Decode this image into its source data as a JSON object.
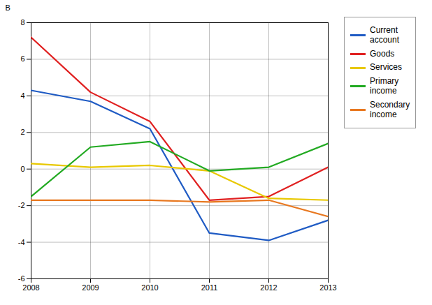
{
  "chart_data": {
    "type": "line",
    "x": [
      2008,
      2009,
      2010,
      2011,
      2012,
      2013
    ],
    "xlim": [
      2008,
      2013
    ],
    "xticks": [
      2008,
      2009,
      2010,
      2011,
      2012,
      2013
    ],
    "ylim": [
      -6,
      8
    ],
    "yticks": [
      -6,
      -4,
      -2,
      0,
      2,
      4,
      6,
      8
    ],
    "ylabel": "B",
    "grid": true,
    "legend": "right",
    "series": [
      {
        "name": "Current\naccount",
        "color": "#1f5bc4",
        "values": [
          4.3,
          3.7,
          2.2,
          -3.5,
          -3.9,
          -2.8
        ]
      },
      {
        "name": "Goods",
        "color": "#e02020",
        "values": [
          7.2,
          4.2,
          2.6,
          -1.7,
          -1.5,
          0.1
        ]
      },
      {
        "name": "Services",
        "color": "#e8c800",
        "values": [
          0.3,
          0.1,
          0.2,
          -0.1,
          -1.6,
          -1.7
        ]
      },
      {
        "name": "Primary\nincome",
        "color": "#22aa22",
        "values": [
          -1.5,
          1.2,
          1.5,
          -0.1,
          0.1,
          1.4
        ]
      },
      {
        "name": "Secondary\nincome",
        "color": "#e87820",
        "values": [
          -1.7,
          -1.7,
          -1.7,
          -1.8,
          -1.7,
          -2.6
        ]
      }
    ]
  }
}
